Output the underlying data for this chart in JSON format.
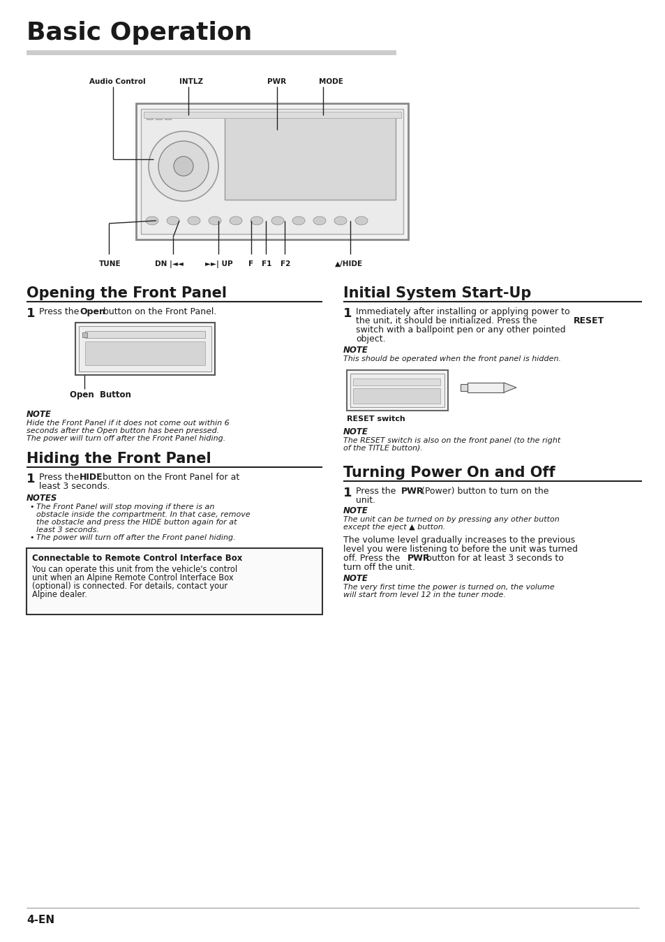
{
  "title": "Basic Operation",
  "bg_color": "#ffffff",
  "text_color": "#1a1a1a",
  "section1_title": "Opening the Front Panel",
  "section2_title": "Hiding the Front Panel",
  "section3_title": "Initial System Start-Up",
  "section4_title": "Turning Power On and Off",
  "page_number": "4-EN",
  "section1_open_button_label": "Open  Button",
  "section1_note_title": "NOTE",
  "section1_note_line1": "Hide the Front Panel if it does not come out within 6",
  "section1_note_line2": "seconds after the Open button has been pressed.",
  "section1_note_line3": "The power will turn off after the Front Panel hiding.",
  "section2_notes_title": "NOTES",
  "section2_box_title": "Connectable to Remote Control Interface Box",
  "section2_box_line1": "You can operate this unit from the vehicle's control",
  "section2_box_line2": "unit when an Alpine Remote Control Interface Box",
  "section2_box_line3": "(optional) is connected. For details, contact your",
  "section2_box_line4": "Alpine dealer.",
  "section3_note_title": "NOTE",
  "section3_note": "This should be operated when the front panel is hidden.",
  "section3_reset_label": "RESET switch",
  "section3_note2_title": "NOTE",
  "section3_note2_line1": "The RESET switch is also on the front panel (to the right",
  "section3_note2_line2": "of the TITLE button).",
  "section4_note_title": "NOTE",
  "section4_note_line1": "The unit can be turned on by pressing any other button",
  "section4_note_line2": "except the eject ▲ button.",
  "section4_para_line1": "The volume level gradually increases to the previous",
  "section4_para_line2": "level you were listening to before the unit was turned",
  "section4_para_line4": "turn off the unit.",
  "section4_note2_title": "NOTE",
  "section4_note2_line1": "The very first time the power is turned on, the volume",
  "section4_note2_line2": "will start from level 12 in the tuner mode."
}
